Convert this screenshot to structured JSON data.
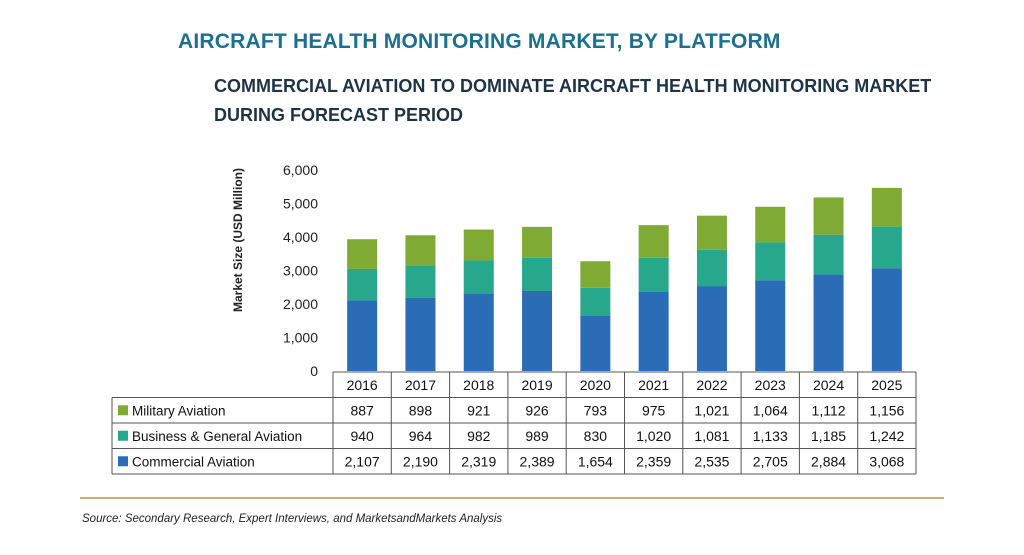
{
  "header": {
    "title": "AIRCRAFT HEALTH MONITORING MARKET, BY PLATFORM",
    "subtitle": "COMMERCIAL AVIATION TO DOMINATE AIRCRAFT HEALTH MONITORING MARKET DURING FORECAST PERIOD"
  },
  "chart_data": {
    "type": "bar",
    "stacked": true,
    "ylabel": "Market Size (USD Million)",
    "ylim": [
      0,
      6000
    ],
    "yticks": [
      "0",
      "1,000",
      "2,000",
      "3,000",
      "4,000",
      "5,000",
      "6,000"
    ],
    "ytick_values": [
      0,
      1000,
      2000,
      3000,
      4000,
      5000,
      6000
    ],
    "categories": [
      "2016",
      "2017",
      "2018",
      "2019",
      "2020",
      "2021",
      "2022",
      "2023",
      "2024",
      "2025"
    ],
    "series": [
      {
        "name": "Commercial Aviation",
        "color": "#2a6cb5",
        "values": [
          2107,
          2190,
          2319,
          2389,
          1654,
          2359,
          2535,
          2705,
          2884,
          3068
        ],
        "labels": [
          "2,107",
          "2,190",
          "2,319",
          "2,389",
          "1,654",
          "2,359",
          "2,535",
          "2,705",
          "2,884",
          "3,068"
        ]
      },
      {
        "name": "Business & General Aviation",
        "color": "#27a88c",
        "values": [
          940,
          964,
          982,
          989,
          830,
          1020,
          1081,
          1133,
          1185,
          1242
        ],
        "labels": [
          "940",
          "964",
          "982",
          "989",
          "830",
          "1,020",
          "1,081",
          "1,133",
          "1,185",
          "1,242"
        ]
      },
      {
        "name": "Military Aviation",
        "color": "#7fab35",
        "values": [
          887,
          898,
          921,
          926,
          793,
          975,
          1021,
          1064,
          1112,
          1156
        ],
        "labels": [
          "887",
          "898",
          "921",
          "926",
          "793",
          "975",
          "1,021",
          "1,064",
          "1,112",
          "1,156"
        ]
      }
    ],
    "data_table": true,
    "grid": false
  },
  "footer": {
    "source": "Source: Secondary Research, Expert Interviews, and MarketsandMarkets Analysis"
  }
}
